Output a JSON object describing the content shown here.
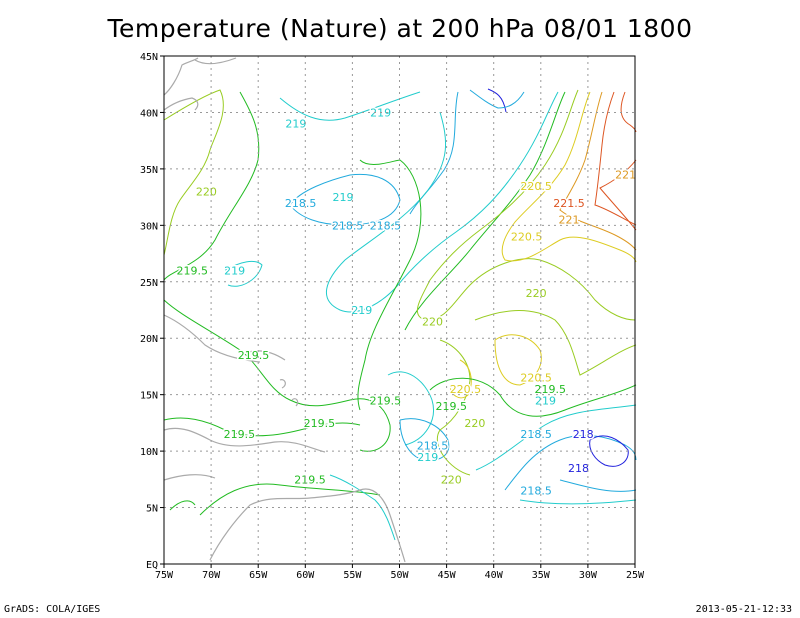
{
  "title": "Temperature (Nature) at 200 hPa 08/01 1800",
  "footer_left": "GrADS: COLA/IGES",
  "footer_right": "2013-05-21-12:33",
  "colors": {
    "c218": "#2222dd",
    "c218_5": "#22aadd",
    "c219": "#22cccc",
    "c219_5": "#22bb22",
    "c220": "#99cc22",
    "c220_5": "#ddcc22",
    "c221": "#dd9922",
    "c221_5": "#dd5522",
    "coast": "#aaaaaa",
    "grid": "#999999"
  },
  "axes": {
    "x_ticks": [
      "75W",
      "70W",
      "65W",
      "60W",
      "55W",
      "50W",
      "45W",
      "40W",
      "35W",
      "30W",
      "25W"
    ],
    "y_ticks": [
      "45N",
      "40N",
      "35N",
      "30N",
      "25N",
      "20N",
      "15N",
      "10N",
      "5N",
      "EQ"
    ]
  },
  "contour_labels": [
    {
      "text": "219",
      "lon": -61.0,
      "lat": 39.0,
      "level": "c219"
    },
    {
      "text": "219",
      "lon": -52.0,
      "lat": 40.0,
      "level": "c219"
    },
    {
      "text": "220",
      "lon": -70.5,
      "lat": 33.0,
      "level": "c220"
    },
    {
      "text": "218.5",
      "lon": -60.5,
      "lat": 32.0,
      "level": "c218_5"
    },
    {
      "text": "219",
      "lon": -56.0,
      "lat": 32.5,
      "level": "c219"
    },
    {
      "text": "218.5",
      "lon": -55.5,
      "lat": 30.0,
      "level": "c218_5"
    },
    {
      "text": "218.5",
      "lon": -51.5,
      "lat": 30.0,
      "level": "c218_5"
    },
    {
      "text": "220.5",
      "lon": -35.5,
      "lat": 33.5,
      "level": "c220_5"
    },
    {
      "text": "221.5",
      "lon": -32.0,
      "lat": 32.0,
      "level": "c221_5"
    },
    {
      "text": "221",
      "lon": -32.0,
      "lat": 30.5,
      "level": "c221"
    },
    {
      "text": "221",
      "lon": -26.0,
      "lat": 34.5,
      "level": "c221"
    },
    {
      "text": "220.5",
      "lon": -36.5,
      "lat": 29.0,
      "level": "c220_5"
    },
    {
      "text": "219.5",
      "lon": -72.0,
      "lat": 26.0,
      "level": "c219_5"
    },
    {
      "text": "219",
      "lon": -67.5,
      "lat": 26.0,
      "level": "c219"
    },
    {
      "text": "220",
      "lon": -35.5,
      "lat": 24.0,
      "level": "c220"
    },
    {
      "text": "219",
      "lon": -54.0,
      "lat": 22.5,
      "level": "c219"
    },
    {
      "text": "220",
      "lon": -46.5,
      "lat": 21.5,
      "level": "c220"
    },
    {
      "text": "219.5",
      "lon": -65.5,
      "lat": 18.5,
      "level": "c219_5"
    },
    {
      "text": "220.5",
      "lon": -35.5,
      "lat": 16.5,
      "level": "c220_5"
    },
    {
      "text": "220.5",
      "lon": -43.0,
      "lat": 15.5,
      "level": "c220_5"
    },
    {
      "text": "219.5",
      "lon": -34.0,
      "lat": 15.5,
      "level": "c219_5"
    },
    {
      "text": "219.5",
      "lon": -51.5,
      "lat": 14.5,
      "level": "c219_5"
    },
    {
      "text": "219.5",
      "lon": -44.5,
      "lat": 14.0,
      "level": "c219_5"
    },
    {
      "text": "219",
      "lon": -34.5,
      "lat": 14.5,
      "level": "c219"
    },
    {
      "text": "219.5",
      "lon": -58.5,
      "lat": 12.5,
      "level": "c219_5"
    },
    {
      "text": "220",
      "lon": -42.0,
      "lat": 12.5,
      "level": "c220"
    },
    {
      "text": "218.5",
      "lon": -35.5,
      "lat": 11.5,
      "level": "c218_5"
    },
    {
      "text": "218",
      "lon": -30.5,
      "lat": 11.5,
      "level": "c218"
    },
    {
      "text": "219.5",
      "lon": -67.0,
      "lat": 11.5,
      "level": "c219_5"
    },
    {
      "text": "218.5",
      "lon": -46.5,
      "lat": 10.5,
      "level": "c218_5"
    },
    {
      "text": "219",
      "lon": -47.0,
      "lat": 9.5,
      "level": "c219"
    },
    {
      "text": "218",
      "lon": -31.0,
      "lat": 8.5,
      "level": "c218"
    },
    {
      "text": "219.5",
      "lon": -59.5,
      "lat": 7.5,
      "level": "c219_5"
    },
    {
      "text": "220",
      "lon": -44.5,
      "lat": 7.5,
      "level": "c220"
    },
    {
      "text": "218.5",
      "lon": -35.5,
      "lat": 6.5,
      "level": "c218_5"
    }
  ]
}
